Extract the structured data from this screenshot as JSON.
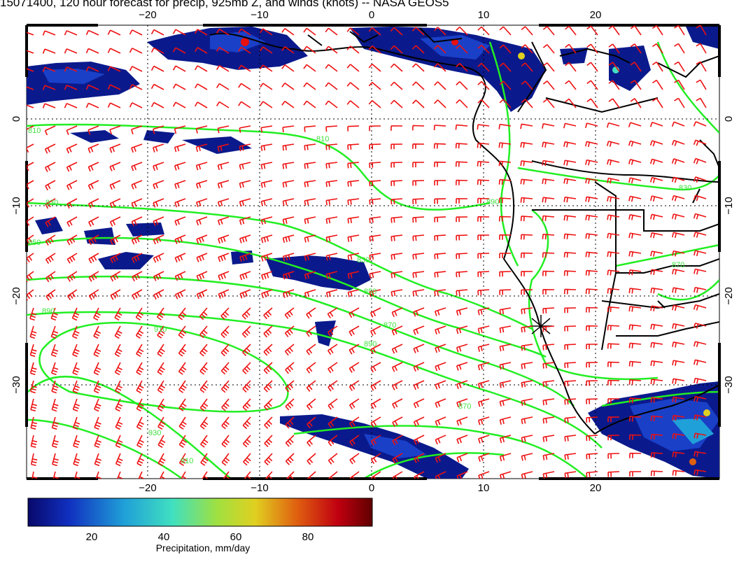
{
  "title": "15071400, 120 hour forecast for precip, 925mb Z, and winds (knots) -- NASA GEOS5",
  "map": {
    "lon_ticks": [
      "−20",
      "−10",
      "0",
      "10",
      "20"
    ],
    "lat_ticks": [
      "0",
      "−10",
      "−20",
      "−30"
    ],
    "contour_labels": [
      "810",
      "830",
      "850",
      "870",
      "890",
      "910",
      "930",
      "850",
      "870",
      "890",
      "810",
      "830",
      "890",
      "830",
      "910",
      "870"
    ],
    "colors": {
      "contour": "#22ee22",
      "barb": "#ee1111",
      "coast": "#000000",
      "precip_low": "#0a1a8c",
      "precip_high": "#e81010"
    }
  },
  "colorbar": {
    "title": "Precipitation, mm/day",
    "ticks": [
      "20",
      "40",
      "60",
      "80"
    ],
    "colors": [
      "#08086a",
      "#1030c0",
      "#20a0d8",
      "#40e0c0",
      "#a0e040",
      "#e0d020",
      "#e06010",
      "#c00010",
      "#600000"
    ]
  }
}
